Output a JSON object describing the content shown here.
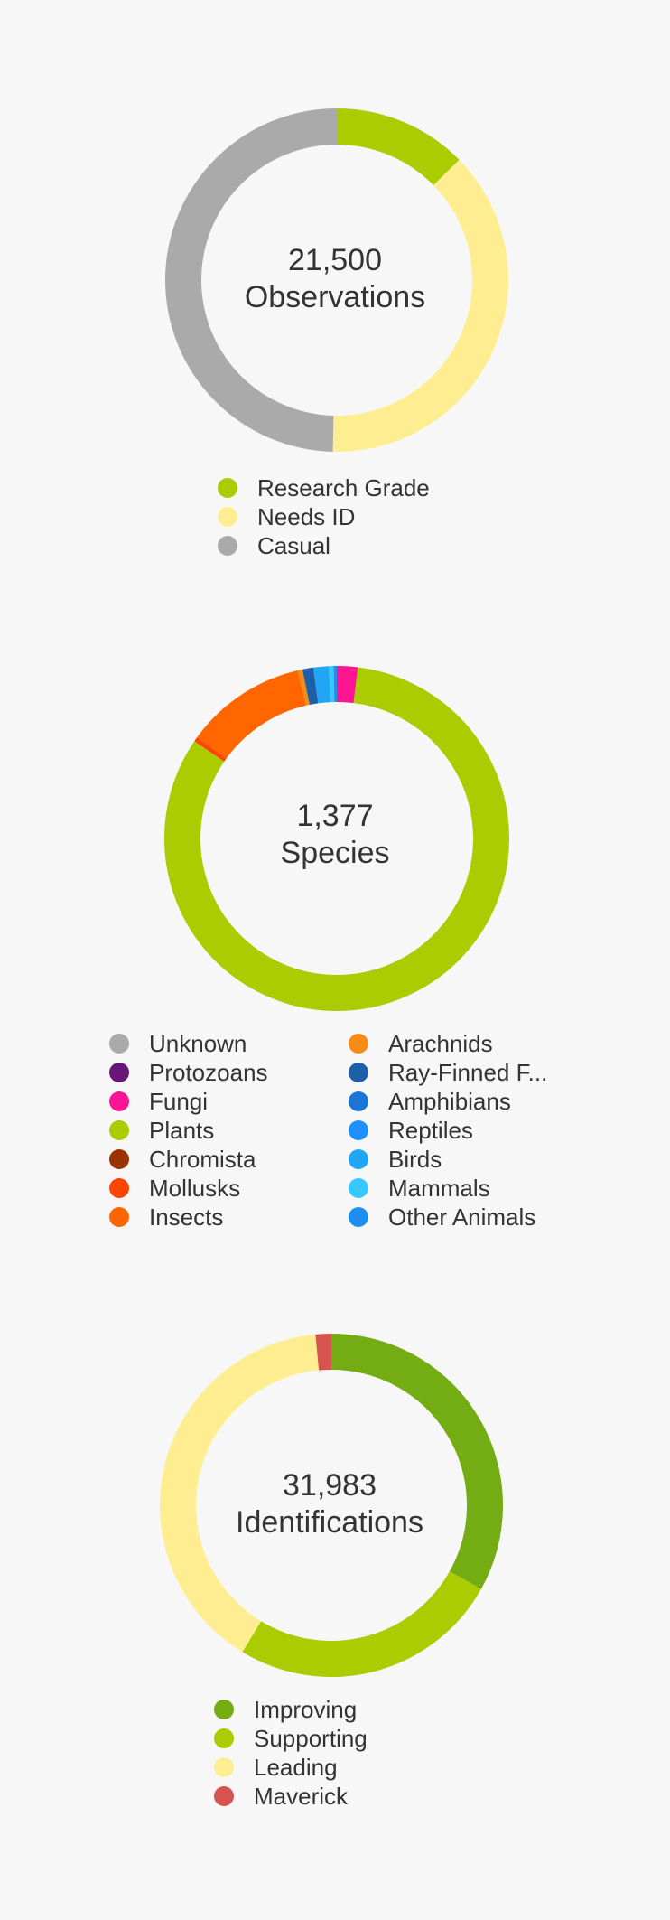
{
  "colors": {
    "background": "#f7f7f7",
    "text": "#333333"
  },
  "charts": [
    {
      "center_number": "21,500",
      "center_label": "Observations"
    },
    {
      "center_number": "1,377",
      "center_label": "Species"
    },
    {
      "center_number": "31,983",
      "center_label": "Identifications"
    }
  ],
  "chart_data": [
    {
      "type": "pie",
      "subtype": "donut",
      "total": 21500,
      "total_label": "Observations",
      "legend_position": "bottom",
      "categories": [
        "Research Grade",
        "Needs ID",
        "Casual"
      ],
      "values": [
        2720,
        8110,
        10670
      ],
      "colors": [
        "#aacc00",
        "#ffee91",
        "#aaaaaa"
      ]
    },
    {
      "type": "pie",
      "subtype": "donut",
      "total": 1377,
      "total_label": "Species",
      "legend_position": "bottom",
      "categories": [
        "Unknown",
        "Protozoans",
        "Fungi",
        "Plants",
        "Chromista",
        "Mollusks",
        "Insects",
        "Arachnids",
        "Ray-Finned F...",
        "Amphibians",
        "Reptiles",
        "Birds",
        "Mammals",
        "Other Animals"
      ],
      "colors": [
        "#aaaaaa",
        "#691776",
        "#ff1493",
        "#aacc00",
        "#993300",
        "#ff4500",
        "#ff6600",
        "#f58c1a",
        "#1d5fa8",
        "#1c74d4",
        "#1e90ff",
        "#21a6f3",
        "#36c8ff",
        "#1e8ff0"
      ],
      "values": [
        0,
        0,
        27,
        1137,
        0,
        6,
        157,
        6,
        14,
        0,
        0,
        20,
        6,
        4
      ]
    },
    {
      "type": "pie",
      "subtype": "donut",
      "total": 31983,
      "total_label": "Identifications",
      "legend_position": "bottom",
      "categories": [
        "Improving",
        "Supporting",
        "Leading",
        "Maverick"
      ],
      "values": [
        10590,
        8180,
        12740,
        473
      ],
      "colors": [
        "#73ac13",
        "#aacc00",
        "#ffee91",
        "#d6544f"
      ]
    }
  ]
}
